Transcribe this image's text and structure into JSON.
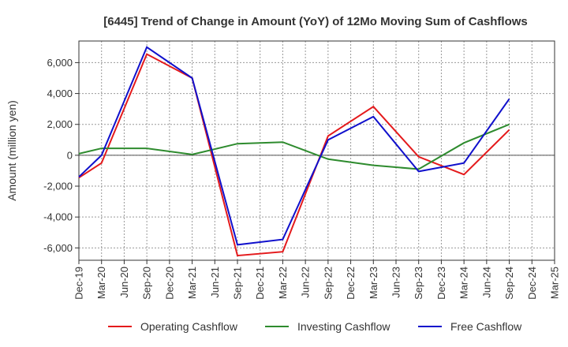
{
  "chart_data": {
    "type": "line",
    "title": "[6445]  Trend of Change in Amount (YoY) of 12Mo Moving Sum of Cashflows",
    "xlabel": "",
    "ylabel": "Amount (million yen)",
    "ylim": [
      -6800,
      7400
    ],
    "yticks": [
      -6000,
      -4000,
      -2000,
      0,
      2000,
      4000,
      6000
    ],
    "ytick_labels": [
      "-6,000",
      "-4,000",
      "-2,000",
      "0",
      "2,000",
      "4,000",
      "6,000"
    ],
    "grid": true,
    "legend_position": "bottom",
    "categories": [
      "Dec-19",
      "Mar-20",
      "Jun-20",
      "Sep-20",
      "Dec-20",
      "Mar-21",
      "Jun-21",
      "Sep-21",
      "Dec-21",
      "Mar-22",
      "Jun-22",
      "Sep-22",
      "Dec-22",
      "Mar-23",
      "Jun-23",
      "Sep-23",
      "Dec-23",
      "Mar-24",
      "Jun-24",
      "Sep-24",
      "Dec-24",
      "Mar-25"
    ],
    "series": [
      {
        "name": "Operating Cashflow",
        "color": "#e41a1c",
        "values": [
          -1450,
          -500,
          null,
          6550,
          null,
          5000,
          null,
          -6500,
          null,
          -6250,
          null,
          1250,
          null,
          3150,
          null,
          -100,
          null,
          -1250,
          null,
          1650,
          null,
          null
        ]
      },
      {
        "name": "Investing Cashflow",
        "color": "#2e8b2e",
        "values": [
          100,
          450,
          null,
          450,
          null,
          50,
          null,
          750,
          null,
          850,
          null,
          -250,
          null,
          -650,
          null,
          -900,
          null,
          800,
          null,
          2000,
          null,
          null
        ]
      },
      {
        "name": "Free Cashflow",
        "color": "#1010cc",
        "values": [
          -1400,
          0,
          null,
          7000,
          null,
          5000,
          null,
          -5800,
          null,
          -5450,
          null,
          1000,
          null,
          2500,
          null,
          -1050,
          null,
          -500,
          null,
          3650,
          null,
          null
        ]
      }
    ]
  }
}
